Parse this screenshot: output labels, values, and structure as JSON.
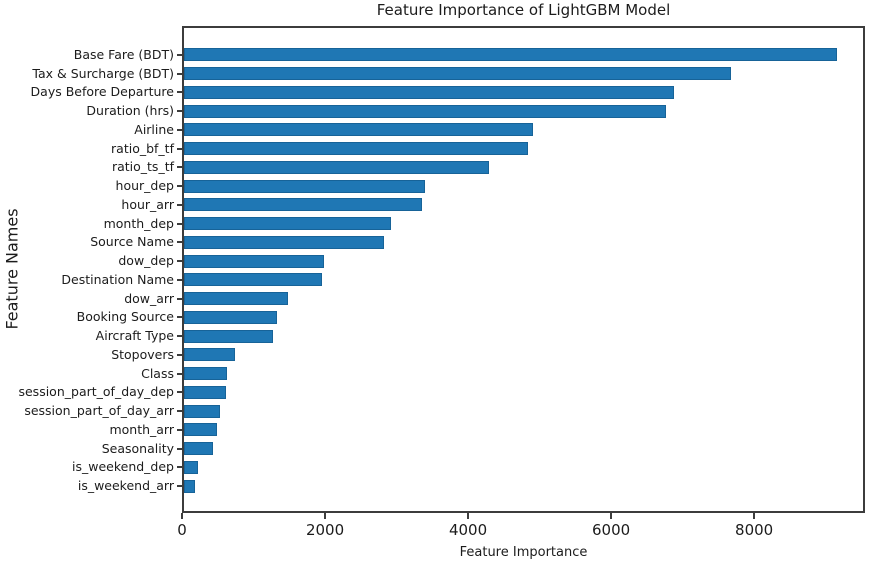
{
  "chart_data": {
    "type": "bar",
    "orientation": "horizontal",
    "title": "Feature Importance of LightGBM Model",
    "xlabel": "Feature Importance",
    "ylabel": "Feature Names",
    "categories": [
      "Base Fare (BDT)",
      "Tax & Surcharge (BDT)",
      "Days Before Departure",
      "Duration (hrs)",
      "Airline",
      "ratio_bf_tf",
      "ratio_ts_tf",
      "hour_dep",
      "hour_arr",
      "month_dep",
      "Source Name",
      "dow_dep",
      "Destination Name",
      "dow_arr",
      "Booking Source",
      "Aircraft Type",
      "Stopovers",
      "Class",
      "session_part_of_day_dep",
      "session_part_of_day_arr",
      "month_arr",
      "Seasonality",
      "is_weekend_dep",
      "is_weekend_arr"
    ],
    "values": [
      9130,
      7650,
      6850,
      6740,
      4880,
      4810,
      4260,
      3370,
      3330,
      2900,
      2790,
      1960,
      1930,
      1460,
      1300,
      1240,
      715,
      600,
      585,
      510,
      460,
      400,
      200,
      150
    ],
    "xlim": [
      0,
      9550
    ],
    "xticks": [
      0,
      2000,
      4000,
      6000,
      8000
    ],
    "xtick_labels": [
      "0",
      "2000",
      "4000",
      "6000",
      "8000"
    ],
    "bar_color": "#1f77b4",
    "spine_color": "#3c3c3c",
    "grid": false,
    "legend": null
  }
}
